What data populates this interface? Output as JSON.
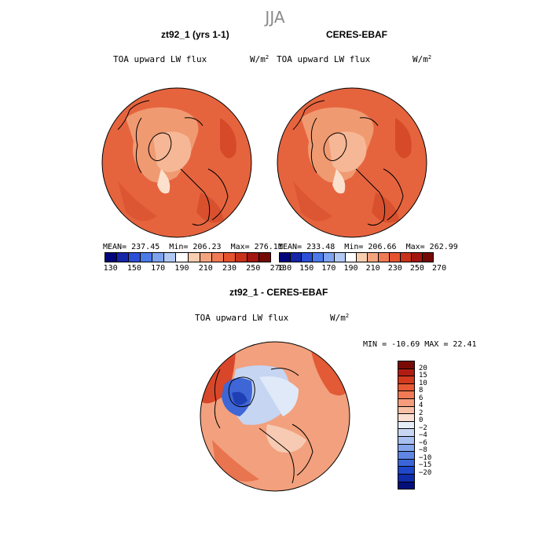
{
  "season": "JJA",
  "panels": [
    {
      "title": "zt92_1 (yrs 1-1)",
      "variable": "TOA upward LW flux",
      "units": "W/m",
      "units_exp": "2",
      "stats": {
        "mean": "MEAN= 237.45",
        "min": "Min= 206.23",
        "max": "Max= 276.11"
      }
    },
    {
      "title": "CERES-EBAF",
      "variable": "TOA upward LW flux",
      "units": "W/m",
      "units_exp": "2",
      "stats": {
        "mean": "MEAN= 233.48",
        "min": "Min= 206.66",
        "max": "Max= 262.99"
      }
    }
  ],
  "colorbar_top": {
    "colors": [
      "#03067a",
      "#1626a8",
      "#2b4fd6",
      "#4c7ae8",
      "#7ea3ef",
      "#b2c9f4",
      "#ffffff",
      "#f8cdb0",
      "#f4a37f",
      "#ef7a54",
      "#e5532f",
      "#c9311a",
      "#a31510",
      "#750a05"
    ],
    "ticks": [
      "130",
      "150",
      "170",
      "190",
      "210",
      "230",
      "250",
      "270"
    ]
  },
  "difference": {
    "title": "zt92_1 - CERES-EBAF",
    "variable": "TOA upward LW flux",
    "units": "W/m",
    "units_exp": "2",
    "minmax": "MIN = -10.69 MAX =  22.41",
    "colorbar": {
      "colors": [
        "#780b05",
        "#b11d12",
        "#d43a1e",
        "#e85a34",
        "#f07a55",
        "#f49c7c",
        "#f7c0a6",
        "#fae0d2",
        "#e4ecf8",
        "#c7d7f3",
        "#a7c0ef",
        "#84a5ea",
        "#5f86e3",
        "#3a66da",
        "#1f47c9",
        "#0f2cab",
        "#030f7a"
      ],
      "labels": [
        "20",
        "15",
        "10",
        "8",
        "6",
        "4",
        "2",
        "0",
        "−2",
        "−4",
        "−6",
        "−8",
        "−10",
        "−15",
        "−20"
      ]
    }
  }
}
